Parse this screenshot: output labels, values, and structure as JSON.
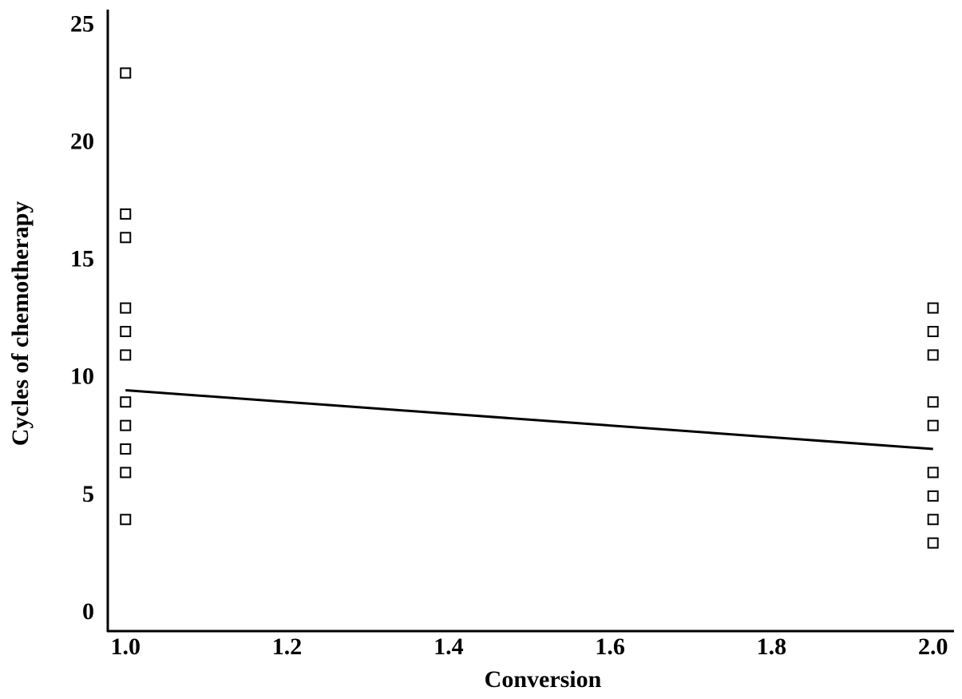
{
  "chart_data": {
    "type": "scatter",
    "x_label": "Conversion",
    "y_label": "Cycles of chemotherapy",
    "xlim": [
      0.978,
      2.026
    ],
    "ylim": [
      -0.75,
      25.7
    ],
    "xticks": [
      {
        "value": 1.0,
        "label": "1.0"
      },
      {
        "value": 1.2,
        "label": "1.2"
      },
      {
        "value": 1.4,
        "label": "1.4"
      },
      {
        "value": 1.6,
        "label": "1.6"
      },
      {
        "value": 1.8,
        "label": "1.8"
      },
      {
        "value": 2.0,
        "label": "2.0"
      }
    ],
    "yticks": [
      0,
      5,
      10,
      15,
      20,
      25
    ],
    "series": [
      {
        "color": "#000000",
        "marker": "square",
        "x": [
          1,
          1,
          1,
          1,
          1,
          1,
          1,
          1,
          1,
          1,
          1,
          2,
          2,
          2,
          2,
          2,
          2,
          2,
          2,
          2
        ],
        "values": [
          23,
          17,
          16,
          13,
          12,
          11,
          9,
          8,
          7,
          6,
          4,
          13,
          12,
          11,
          9,
          8,
          6,
          5,
          4,
          3
        ]
      },
      {
        "color": "#000000",
        "marker": "line",
        "x": [
          1,
          2
        ],
        "values": [
          9.5,
          7.0
        ]
      }
    ]
  }
}
